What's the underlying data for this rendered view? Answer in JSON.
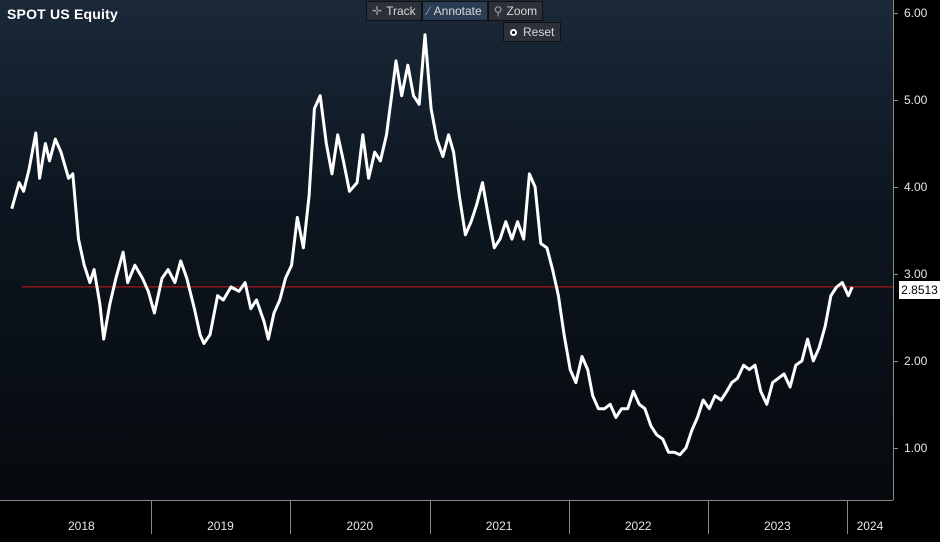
{
  "title": "SPOT US Equity",
  "toolbar": {
    "track_label": "Track",
    "annotate_label": "Annotate",
    "zoom_label": "Zoom",
    "reset_label": "Reset",
    "active": "Annotate"
  },
  "colors": {
    "line": "#ffffff",
    "reference_line": "#d01818",
    "background_top": "#1a2838",
    "background_bottom": "#060a0e",
    "axis": "#888888",
    "text": "#e6e6e6"
  },
  "chart_data": {
    "type": "line",
    "title": "SPOT US Equity",
    "xlabel": "",
    "ylabel": "",
    "ylim": [
      0.4,
      6.15
    ],
    "xlim": [
      "2017-12-01",
      "2024-05-01"
    ],
    "yticks": [
      "1.00",
      "2.00",
      "3.00",
      "4.00",
      "5.00",
      "6.00"
    ],
    "xticks": [
      "2018",
      "2019",
      "2020",
      "2021",
      "2022",
      "2023",
      "2024"
    ],
    "last_value": "2.8513",
    "reference_line": {
      "y": 2.8513
    },
    "grid": false,
    "series": [
      {
        "values": [
          [
            "2018-01-01",
            3.75
          ],
          [
            "2018-01-20",
            4.05
          ],
          [
            "2018-02-01",
            3.95
          ],
          [
            "2018-02-15",
            4.2
          ],
          [
            "2018-03-05",
            4.62
          ],
          [
            "2018-03-15",
            4.1
          ],
          [
            "2018-03-30",
            4.5
          ],
          [
            "2018-04-10",
            4.3
          ],
          [
            "2018-04-25",
            4.55
          ],
          [
            "2018-05-10",
            4.4
          ],
          [
            "2018-05-30",
            4.1
          ],
          [
            "2018-06-10",
            4.15
          ],
          [
            "2018-06-25",
            3.4
          ],
          [
            "2018-07-10",
            3.1
          ],
          [
            "2018-07-25",
            2.9
          ],
          [
            "2018-08-05",
            3.05
          ],
          [
            "2018-08-20",
            2.65
          ],
          [
            "2018-08-30",
            2.25
          ],
          [
            "2018-09-15",
            2.65
          ],
          [
            "2018-10-01",
            2.95
          ],
          [
            "2018-10-20",
            3.25
          ],
          [
            "2018-11-01",
            2.9
          ],
          [
            "2018-11-20",
            3.1
          ],
          [
            "2018-12-10",
            2.95
          ],
          [
            "2018-12-25",
            2.8
          ],
          [
            "2019-01-10",
            2.55
          ],
          [
            "2019-01-30",
            2.95
          ],
          [
            "2019-02-15",
            3.05
          ],
          [
            "2019-03-05",
            2.9
          ],
          [
            "2019-03-20",
            3.15
          ],
          [
            "2019-04-05",
            2.95
          ],
          [
            "2019-04-25",
            2.6
          ],
          [
            "2019-05-10",
            2.3
          ],
          [
            "2019-05-20",
            2.2
          ],
          [
            "2019-06-05",
            2.3
          ],
          [
            "2019-06-25",
            2.75
          ],
          [
            "2019-07-10",
            2.7
          ],
          [
            "2019-07-30",
            2.85
          ],
          [
            "2019-08-20",
            2.8
          ],
          [
            "2019-09-05",
            2.9
          ],
          [
            "2019-09-20",
            2.6
          ],
          [
            "2019-10-05",
            2.7
          ],
          [
            "2019-10-25",
            2.45
          ],
          [
            "2019-11-05",
            2.25
          ],
          [
            "2019-11-20",
            2.55
          ],
          [
            "2019-12-05",
            2.7
          ],
          [
            "2019-12-20",
            2.95
          ],
          [
            "2020-01-05",
            3.1
          ],
          [
            "2020-01-20",
            3.65
          ],
          [
            "2020-02-05",
            3.3
          ],
          [
            "2020-02-20",
            3.9
          ],
          [
            "2020-03-05",
            4.9
          ],
          [
            "2020-03-20",
            5.05
          ],
          [
            "2020-04-05",
            4.5
          ],
          [
            "2020-04-20",
            4.15
          ],
          [
            "2020-05-05",
            4.6
          ],
          [
            "2020-05-20",
            4.3
          ],
          [
            "2020-06-05",
            3.95
          ],
          [
            "2020-06-25",
            4.05
          ],
          [
            "2020-07-10",
            4.6
          ],
          [
            "2020-07-25",
            4.1
          ],
          [
            "2020-08-10",
            4.4
          ],
          [
            "2020-08-25",
            4.3
          ],
          [
            "2020-09-10",
            4.6
          ],
          [
            "2020-09-25",
            5.1
          ],
          [
            "2020-10-05",
            5.45
          ],
          [
            "2020-10-20",
            5.05
          ],
          [
            "2020-11-05",
            5.4
          ],
          [
            "2020-11-20",
            5.05
          ],
          [
            "2020-12-05",
            4.95
          ],
          [
            "2020-12-20",
            5.75
          ],
          [
            "2021-01-05",
            4.9
          ],
          [
            "2021-01-20",
            4.55
          ],
          [
            "2021-02-05",
            4.35
          ],
          [
            "2021-02-20",
            4.6
          ],
          [
            "2021-03-05",
            4.4
          ],
          [
            "2021-03-20",
            3.9
          ],
          [
            "2021-04-05",
            3.45
          ],
          [
            "2021-04-20",
            3.6
          ],
          [
            "2021-05-05",
            3.8
          ],
          [
            "2021-05-20",
            4.05
          ],
          [
            "2021-06-05",
            3.65
          ],
          [
            "2021-06-20",
            3.3
          ],
          [
            "2021-07-05",
            3.4
          ],
          [
            "2021-07-20",
            3.6
          ],
          [
            "2021-08-05",
            3.4
          ],
          [
            "2021-08-20",
            3.6
          ],
          [
            "2021-09-05",
            3.4
          ],
          [
            "2021-09-20",
            4.15
          ],
          [
            "2021-10-05",
            4.0
          ],
          [
            "2021-10-20",
            3.35
          ],
          [
            "2021-11-05",
            3.3
          ],
          [
            "2021-11-20",
            3.05
          ],
          [
            "2021-12-05",
            2.75
          ],
          [
            "2021-12-20",
            2.3
          ],
          [
            "2022-01-05",
            1.9
          ],
          [
            "2022-01-20",
            1.75
          ],
          [
            "2022-02-05",
            2.05
          ],
          [
            "2022-02-20",
            1.9
          ],
          [
            "2022-03-05",
            1.6
          ],
          [
            "2022-03-20",
            1.45
          ],
          [
            "2022-04-05",
            1.45
          ],
          [
            "2022-04-20",
            1.5
          ],
          [
            "2022-05-05",
            1.35
          ],
          [
            "2022-05-20",
            1.45
          ],
          [
            "2022-06-05",
            1.45
          ],
          [
            "2022-06-20",
            1.65
          ],
          [
            "2022-07-05",
            1.5
          ],
          [
            "2022-07-20",
            1.45
          ],
          [
            "2022-08-05",
            1.25
          ],
          [
            "2022-08-20",
            1.15
          ],
          [
            "2022-09-05",
            1.1
          ],
          [
            "2022-09-20",
            0.95
          ],
          [
            "2022-10-05",
            0.95
          ],
          [
            "2022-10-20",
            0.92
          ],
          [
            "2022-11-05",
            1.0
          ],
          [
            "2022-11-20",
            1.2
          ],
          [
            "2022-12-05",
            1.35
          ],
          [
            "2022-12-20",
            1.55
          ],
          [
            "2023-01-05",
            1.45
          ],
          [
            "2023-01-20",
            1.6
          ],
          [
            "2023-02-05",
            1.55
          ],
          [
            "2023-02-20",
            1.65
          ],
          [
            "2023-03-05",
            1.75
          ],
          [
            "2023-03-20",
            1.8
          ],
          [
            "2023-04-05",
            1.95
          ],
          [
            "2023-04-20",
            1.9
          ],
          [
            "2023-05-05",
            1.95
          ],
          [
            "2023-05-20",
            1.65
          ],
          [
            "2023-06-05",
            1.5
          ],
          [
            "2023-06-20",
            1.75
          ],
          [
            "2023-07-05",
            1.8
          ],
          [
            "2023-07-20",
            1.85
          ],
          [
            "2023-08-05",
            1.7
          ],
          [
            "2023-08-20",
            1.95
          ],
          [
            "2023-09-05",
            2.0
          ],
          [
            "2023-09-20",
            2.25
          ],
          [
            "2023-10-05",
            2.0
          ],
          [
            "2023-10-20",
            2.15
          ],
          [
            "2023-11-05",
            2.4
          ],
          [
            "2023-11-20",
            2.75
          ],
          [
            "2023-12-05",
            2.85
          ],
          [
            "2023-12-20",
            2.9
          ],
          [
            "2024-01-05",
            2.75
          ],
          [
            "2024-01-15",
            2.85
          ]
        ]
      }
    ]
  }
}
